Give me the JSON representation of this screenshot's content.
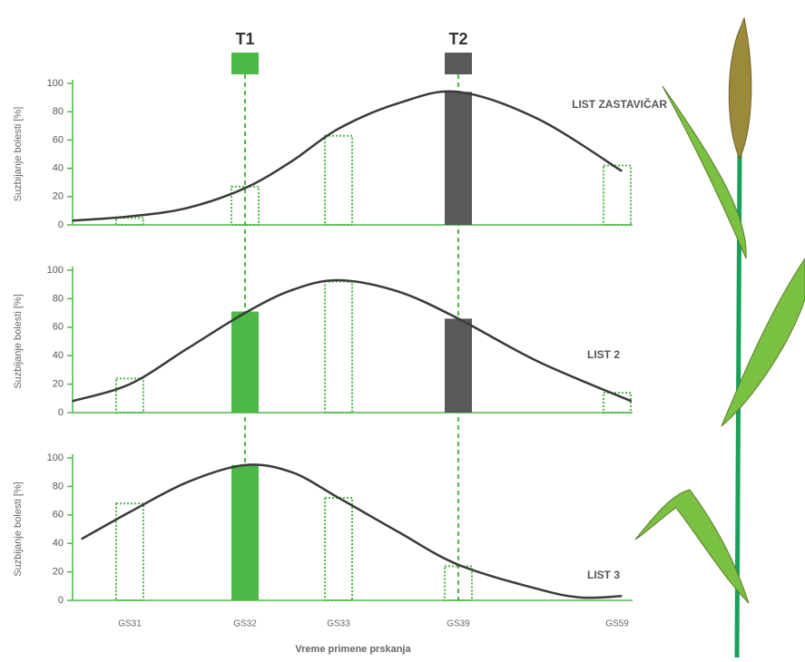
{
  "x_label": "Vreme primene prskanja",
  "markers": [
    {
      "label": "T1",
      "color": "#4db848",
      "category": 1
    },
    {
      "label": "T2",
      "color": "#58595b",
      "category": 3
    }
  ],
  "chart_data": [
    {
      "type": "bar",
      "title": "LIST ZASTAVIČAR",
      "y_label": "Suzbijanje bolesti [%]",
      "values": [
        5,
        27,
        63,
        94,
        42
      ],
      "bar_fill": [
        null,
        null,
        null,
        "#58595b",
        null
      ],
      "outline_color": "#4db848",
      "ylim": [
        0,
        100
      ],
      "yticks": [
        0,
        20,
        40,
        60,
        80,
        100
      ],
      "curve": {
        "color": "#3a3a3a",
        "x": [
          -0.5,
          0,
          0.5,
          1,
          1.5,
          2,
          2.5,
          3,
          3.5,
          4.03
        ],
        "values": [
          3,
          6,
          12,
          26,
          45,
          68,
          86,
          94,
          75,
          38
        ]
      }
    },
    {
      "type": "bar",
      "title": "LIST 2",
      "y_label": "Suzbijanje bolesti [%]",
      "values": [
        24,
        71,
        92,
        66,
        14
      ],
      "bar_fill": [
        null,
        "#4db848",
        null,
        "#58595b",
        null
      ],
      "outline_color": "#4db848",
      "ylim": [
        0,
        100
      ],
      "yticks": [
        0,
        20,
        40,
        60,
        80,
        100
      ],
      "curve": {
        "color": "#3a3a3a",
        "x": [
          -0.5,
          0,
          0.5,
          1,
          1.5,
          2,
          2.5,
          3,
          3.5,
          4.09
        ],
        "values": [
          8,
          20,
          45,
          70,
          86,
          93,
          85,
          66,
          36,
          8
        ]
      }
    },
    {
      "type": "bar",
      "title": "LIST 3",
      "y_label": "Suzbijanje bolesti [%]",
      "categories": [
        "GS31",
        "GS32",
        "GS33",
        "GS39",
        "GS59"
      ],
      "values": [
        68,
        95,
        72,
        24,
        null
      ],
      "bar_fill": [
        null,
        "#4db848",
        null,
        null,
        null
      ],
      "outline_color": "#4db848",
      "ylim": [
        0,
        100
      ],
      "yticks": [
        0,
        20,
        40,
        60,
        80,
        100
      ],
      "curve": {
        "color": "#3a3a3a",
        "x": [
          -0.42,
          0,
          0.5,
          1,
          1.5,
          2,
          2.5,
          3,
          3.5,
          3.77,
          4.03
        ],
        "values": [
          43,
          62,
          83,
          95,
          90,
          72,
          48,
          25,
          8,
          2,
          3
        ]
      }
    }
  ]
}
